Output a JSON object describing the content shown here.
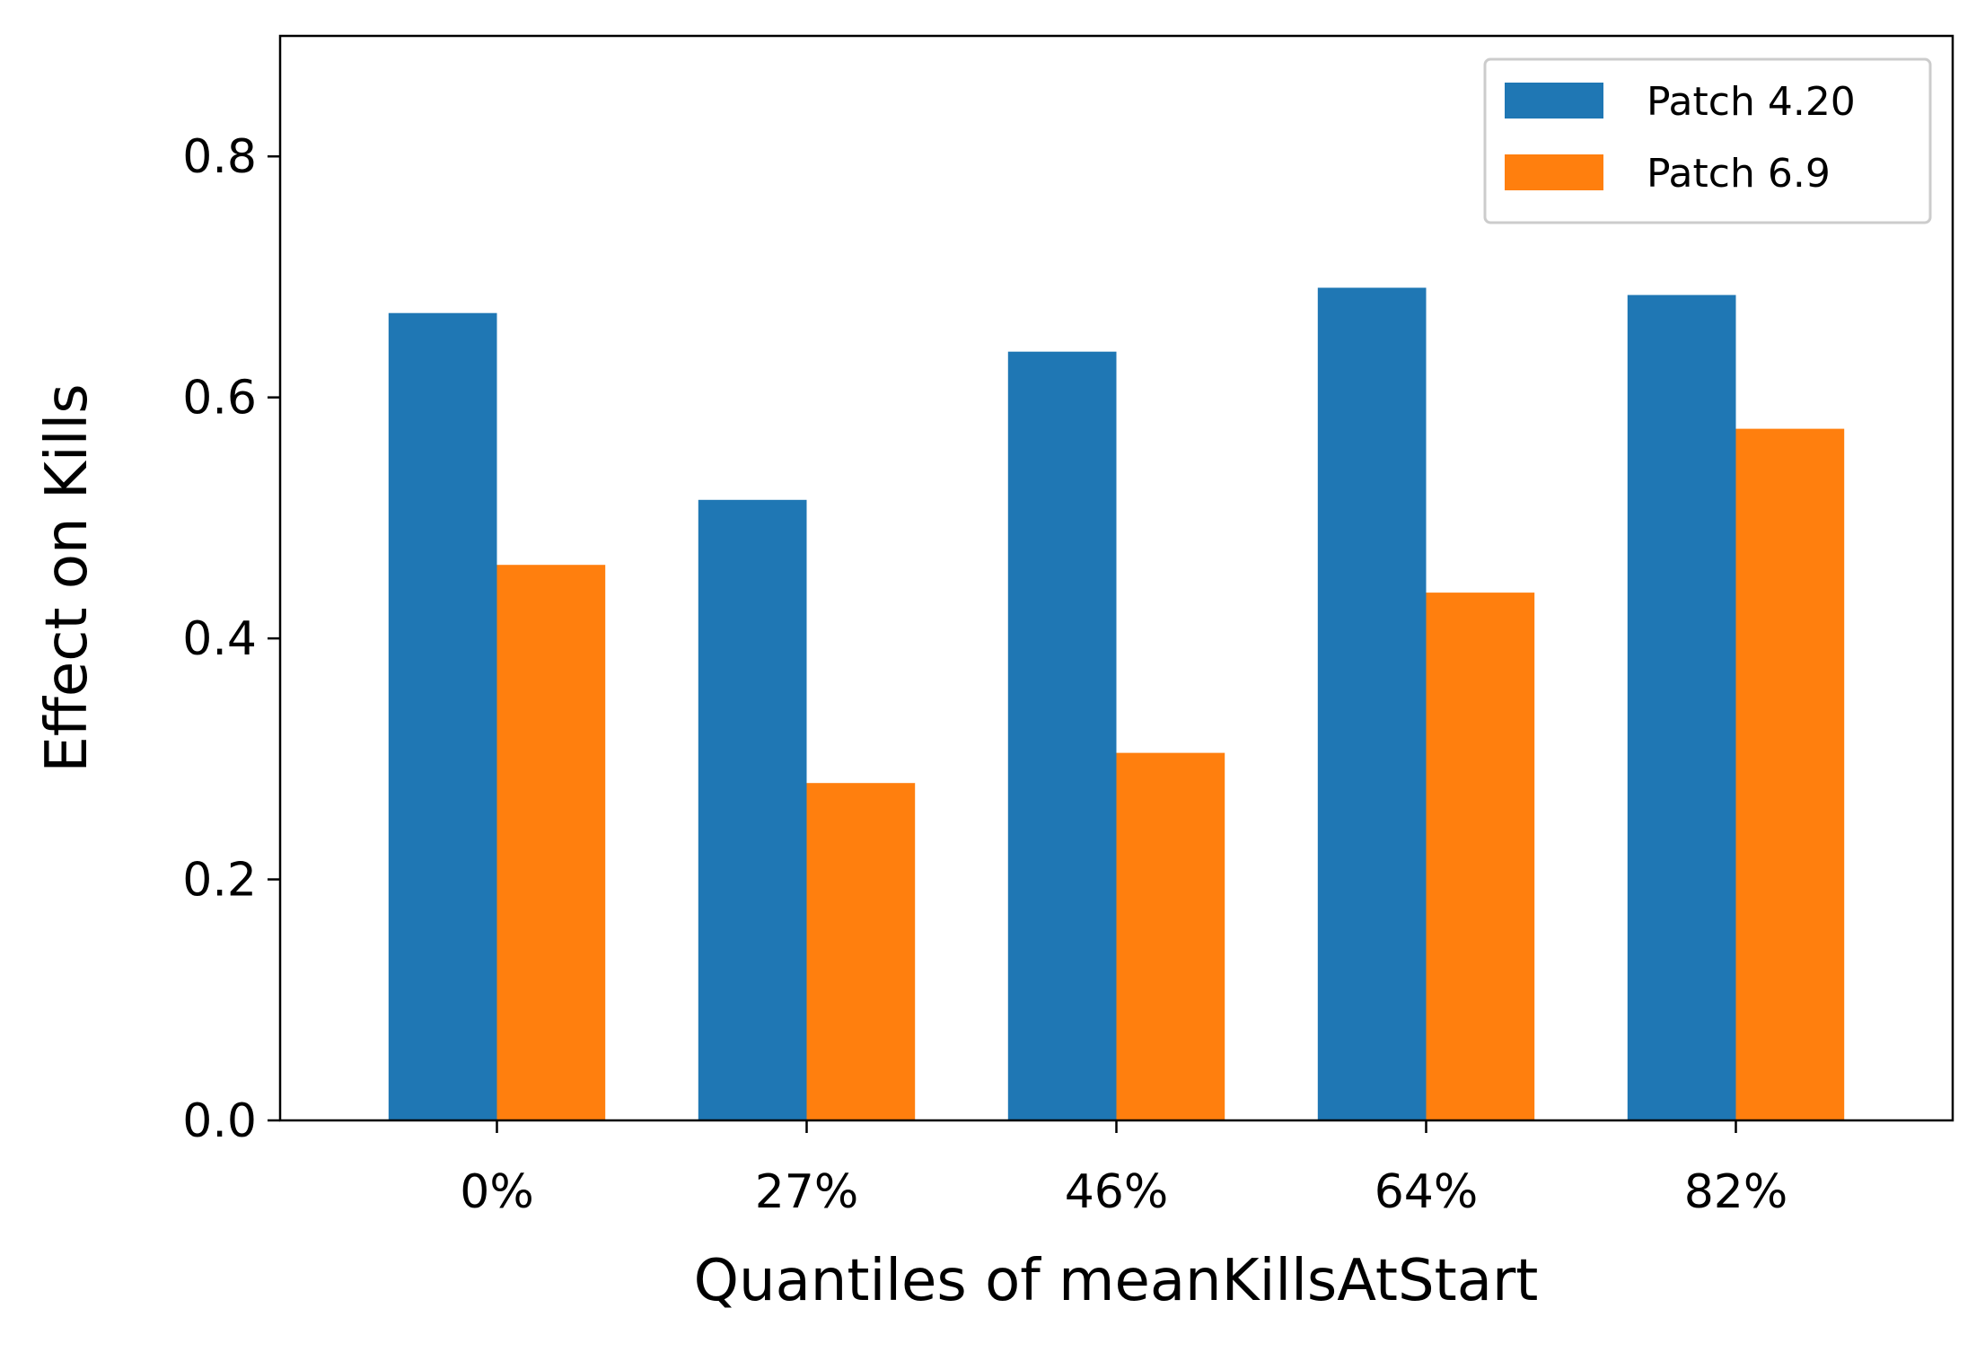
{
  "chart_data": {
    "type": "bar",
    "title": "",
    "xlabel": "Quantiles of meanKillsAtStart",
    "ylabel": "Effect on Kills",
    "categories": [
      "0%",
      "27%",
      "46%",
      "64%",
      "82%"
    ],
    "series": [
      {
        "name": "Patch 4.20",
        "color": "#1f77b4",
        "values": [
          0.67,
          0.515,
          0.638,
          0.691,
          0.685
        ]
      },
      {
        "name": "Patch 6.9",
        "color": "#ff7f0e",
        "values": [
          0.461,
          0.28,
          0.305,
          0.438,
          0.574
        ]
      }
    ],
    "ylim": [
      0,
      0.9
    ],
    "yticks": [
      0.0,
      0.2,
      0.4,
      0.6,
      0.8
    ],
    "ytick_labels": [
      "0.0",
      "0.2",
      "0.4",
      "0.6",
      "0.8"
    ],
    "grid": false,
    "legend_position": "top-right"
  }
}
